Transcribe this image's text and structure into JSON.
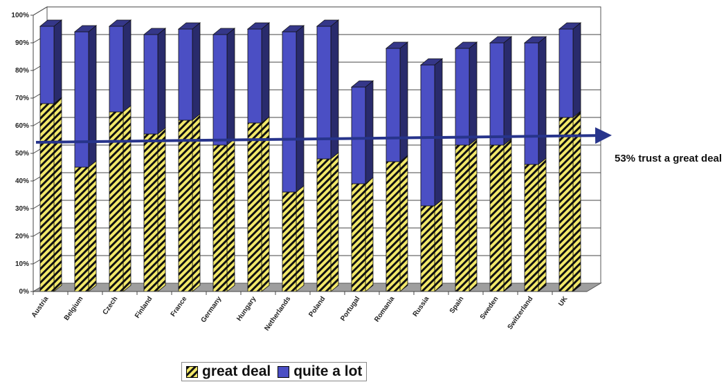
{
  "chart_data": {
    "type": "bar",
    "stacked": true,
    "three_d": true,
    "categories": [
      "Austria",
      "Belgium",
      "Czech",
      "Finland",
      "France",
      "Germany",
      "Hungary",
      "Netherlands",
      "Poland",
      "Portugal",
      "Romania",
      "Russia",
      "Spain",
      "Sweden",
      "Switzerland",
      "UK"
    ],
    "series": [
      {
        "name": "great deal",
        "values": [
          68,
          45,
          65,
          57,
          62,
          53,
          61,
          36,
          48,
          39,
          47,
          31,
          53,
          53,
          46,
          63
        ],
        "color": "#f2e86a"
      },
      {
        "name": "quite a lot",
        "values": [
          28,
          49,
          31,
          36,
          33,
          40,
          34,
          58,
          48,
          35,
          41,
          51,
          35,
          37,
          44,
          32
        ],
        "color": "#4b4fc4"
      }
    ],
    "y_ticks": [
      "0%",
      "10%",
      "20%",
      "30%",
      "40%",
      "50%",
      "60%",
      "70%",
      "80%",
      "90%",
      "100%"
    ],
    "ylim": [
      0,
      100
    ],
    "grid": true,
    "legend_position": "bottom",
    "reference_arrow": {
      "value": 53,
      "color": "#27348b"
    },
    "annotation": "53% trust a great deal"
  }
}
